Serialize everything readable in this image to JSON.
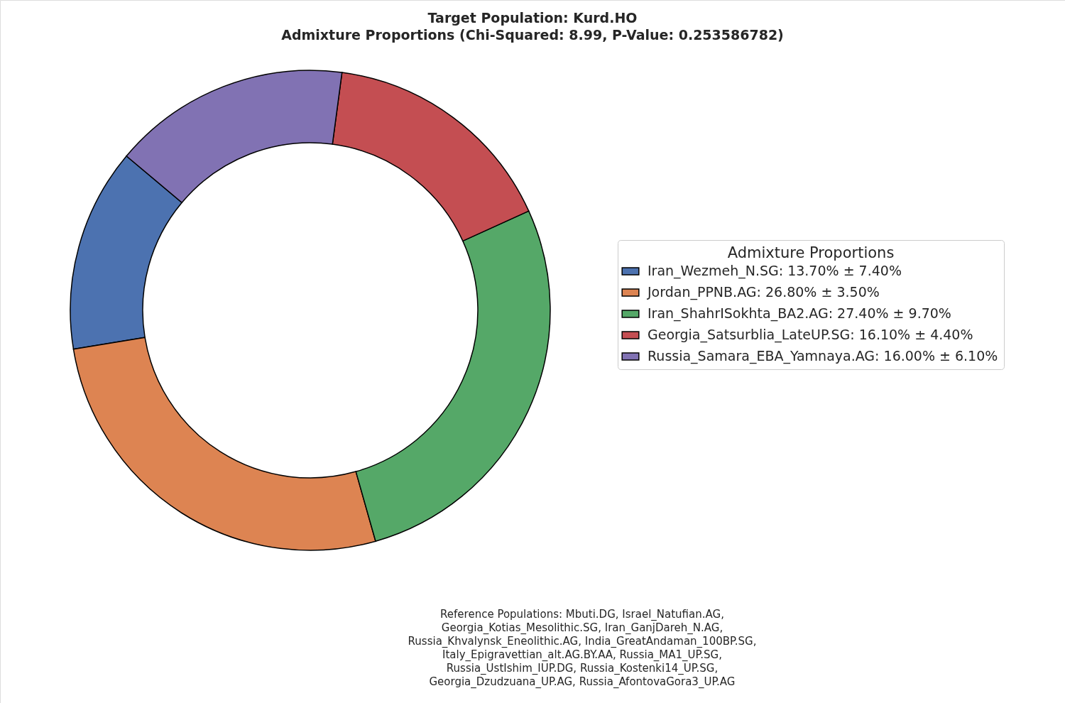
{
  "chart_data": {
    "type": "donut",
    "title": "Target Population: Kurd.HO\nAdmixture Proportions (Chi-Squared: 8.99, P-Value: 0.253586782)",
    "legend_title": "Admixture Proportions",
    "categories": [
      "Iran_Wezmeh_N.SG: 13.70% ± 7.40%",
      "Jordan_PPNB.AG: 26.80% ± 3.50%",
      "Iran_ShahrISokhta_BA2.AG: 27.40% ± 9.70%",
      "Georgia_Satsurblia_LateUP.SG: 16.10% ± 4.40%",
      "Russia_Samara_EBA_Yamnaya.AG: 16.00% ± 6.10%"
    ],
    "values": [
      13.7,
      26.8,
      27.4,
      16.1,
      16.0
    ],
    "colors": [
      "#4c72b0",
      "#dd8452",
      "#55a868",
      "#c44e52",
      "#8172b3"
    ],
    "legend": "right",
    "annotations": [
      "Reference Populations: Mbuti.DG,   Israel_Natufian.AG,\nGeorgia_Kotias_Mesolithic.SG,  Iran_GanjDareh_N.AG,\nRussia_Khvalynsk_Eneolithic.AG, India_GreatAndaman_100BP.SG,\nItaly_Epigravettian_alt.AG.BY.AA,     Russia_MA1_UP.SG,\nRussia_UstIshim_IUP.DG, Russia_Kostenki14_UP.SG,\nGeorgia_Dzudzuana_UP.AG, Russia_AfontovaGora3_UP.AG"
    ]
  }
}
